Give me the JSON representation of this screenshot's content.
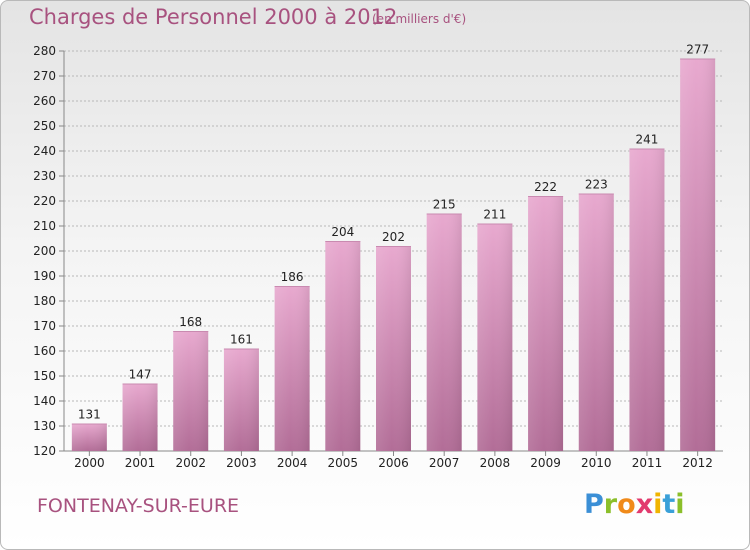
{
  "header": {
    "title": "Charges de Personnel 2000 à 2012",
    "subtitle": "(en milliers d'€)"
  },
  "footer": {
    "commune": "FONTENAY-SUR-EURE",
    "logo_text": "Proxiti"
  },
  "colors": {
    "accent": "#a8527f",
    "bar_top": "#e8a9cf",
    "bar_bottom": "#b26d97"
  },
  "chart_data": {
    "type": "bar",
    "title": "Charges de Personnel 2000 à 2012",
    "subtitle": "(en milliers d'€)",
    "xlabel": "",
    "ylabel": "",
    "categories": [
      "2000",
      "2001",
      "2002",
      "2003",
      "2004",
      "2005",
      "2006",
      "2007",
      "2008",
      "2009",
      "2010",
      "2011",
      "2012"
    ],
    "values": [
      131,
      147,
      168,
      161,
      186,
      204,
      202,
      215,
      211,
      222,
      223,
      241,
      277
    ],
    "ylim": [
      120,
      280
    ],
    "yticks": [
      120,
      130,
      140,
      150,
      160,
      170,
      180,
      190,
      200,
      210,
      220,
      230,
      240,
      250,
      260,
      270,
      280
    ],
    "grid": true,
    "legend": "none"
  }
}
